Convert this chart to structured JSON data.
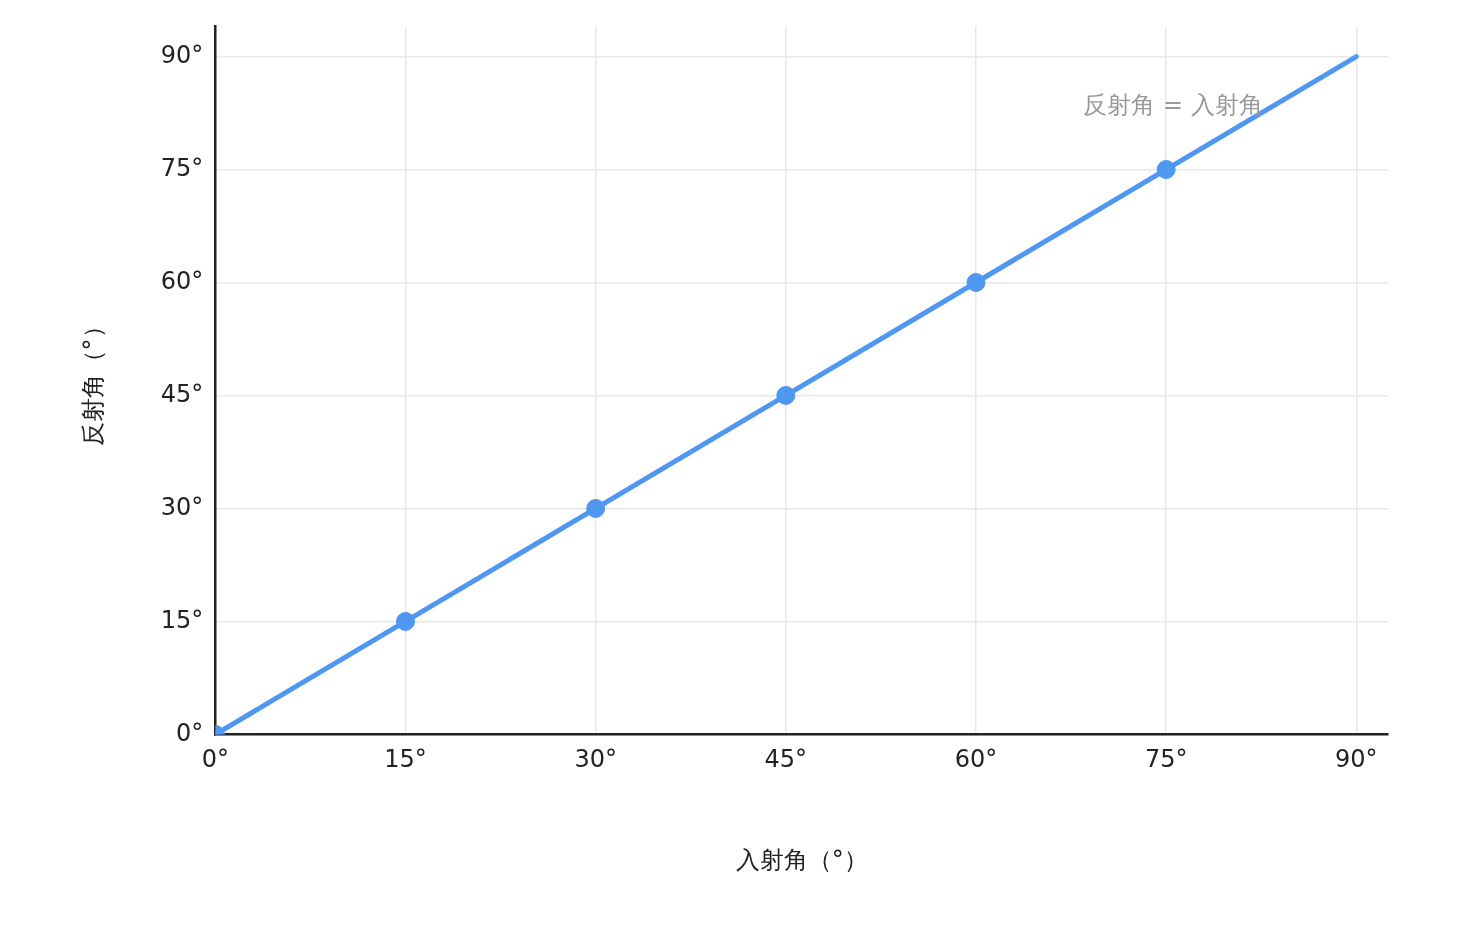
{
  "chart_data": {
    "type": "line",
    "xlabel": "入射角（°）",
    "ylabel": "反射角（°）",
    "xlim": [
      0,
      92.5
    ],
    "ylim": [
      0,
      94
    ],
    "xticks": [
      {
        "value": 0,
        "label": "0°"
      },
      {
        "value": 15,
        "label": "15°"
      },
      {
        "value": 30,
        "label": "30°"
      },
      {
        "value": 45,
        "label": "45°"
      },
      {
        "value": 60,
        "label": "60°"
      },
      {
        "value": 75,
        "label": "75°"
      },
      {
        "value": 90,
        "label": "90°"
      }
    ],
    "yticks": [
      {
        "value": 0,
        "label": "0°"
      },
      {
        "value": 15,
        "label": "15°"
      },
      {
        "value": 30,
        "label": "30°"
      },
      {
        "value": 45,
        "label": "45°"
      },
      {
        "value": 60,
        "label": "60°"
      },
      {
        "value": 75,
        "label": "75°"
      },
      {
        "value": 90,
        "label": "90°"
      }
    ],
    "grid": true,
    "legend": false,
    "annotations": [
      "反射角 = 入射角"
    ],
    "series": [
      {
        "color": "#4f97f0",
        "x": [
          0,
          90
        ],
        "values": [
          0,
          90
        ],
        "marker": "none",
        "line_style": "solid"
      },
      {
        "type": "scatter",
        "color": "#4f97f0",
        "x": [
          0,
          15,
          30,
          45,
          60,
          75
        ],
        "values": [
          0,
          15,
          30,
          45,
          60,
          75
        ],
        "marker": "circle"
      }
    ]
  }
}
